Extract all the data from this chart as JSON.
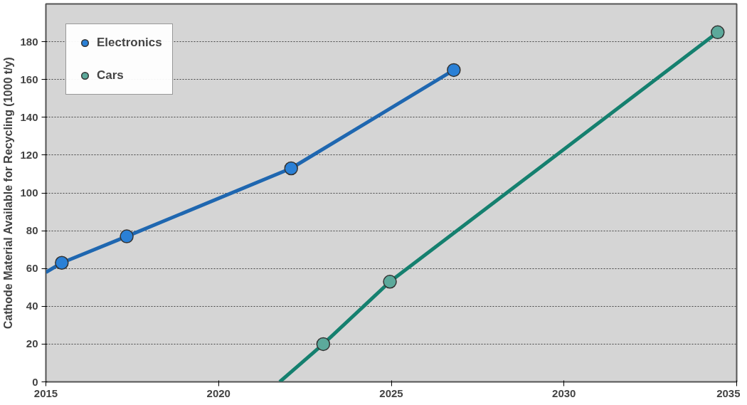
{
  "chart_data": {
    "type": "line",
    "ylabel": "Cathode Material Available for Recycling (1000 t/y)",
    "xlim": [
      2015,
      2035
    ],
    "xticks": [
      2015,
      2020,
      2025,
      2030,
      2035
    ],
    "ylim": [
      0,
      200
    ],
    "yticks": [
      0,
      20,
      40,
      60,
      80,
      100,
      120,
      140,
      160,
      180
    ],
    "grid": "y",
    "legend": "top left",
    "series": [
      {
        "color": "#1f67b0",
        "marker": "none",
        "x": [
          2015,
          2015.46,
          2017.34,
          2022.1,
          2026.81
        ],
        "values": [
          58,
          63,
          77,
          113,
          165
        ]
      },
      {
        "color": "#15806f",
        "marker": "none",
        "x": [
          2021.77,
          2023.03,
          2024.96,
          2034.45
        ],
        "values": [
          0,
          20,
          53,
          185
        ]
      },
      {
        "type": "scatter",
        "name": "Electronics",
        "color": "#2a80d6",
        "marker": "circle",
        "x": [
          2015.46,
          2017.34,
          2022.1,
          2026.81
        ],
        "values": [
          63,
          77,
          113,
          165
        ]
      },
      {
        "type": "scatter",
        "name": "Cars",
        "color": "#5ca99b",
        "marker": "circle",
        "x": [
          2023.03,
          2024.96,
          2034.45
        ],
        "values": [
          20,
          53,
          185
        ]
      }
    ]
  }
}
